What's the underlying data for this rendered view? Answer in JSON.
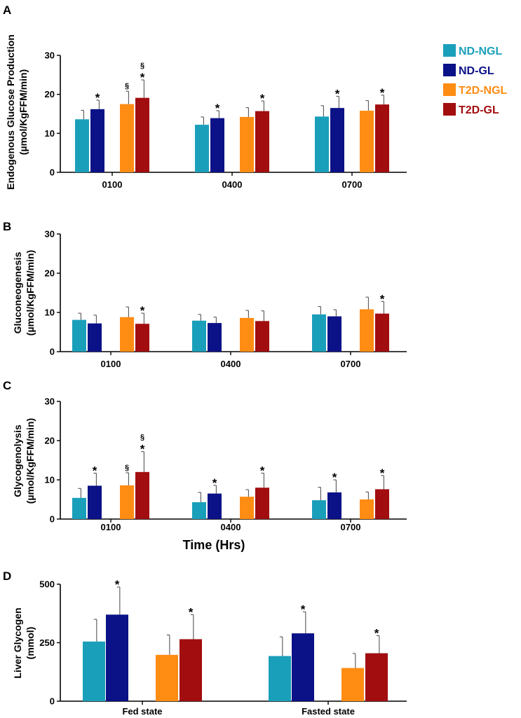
{
  "legend": [
    {
      "label": "ND-NGL",
      "color": "#1a9fba"
    },
    {
      "label": "ND-GL",
      "color": "#0b1186"
    },
    {
      "label": "T2D-NGL",
      "color": "#ff8c13"
    },
    {
      "label": "T2D-GL",
      "color": "#a20d0f"
    }
  ],
  "shared_xlabel": "Time (Hrs)",
  "chart_data": [
    {
      "panel": "A",
      "type": "bar",
      "ylabel_lines": [
        "Endogenous Glucose Production",
        "(µmol/KgFFM/min)"
      ],
      "ylim": [
        0,
        30
      ],
      "yticks": [
        0,
        10,
        20,
        30
      ],
      "categories": [
        "0100",
        "0400",
        "0700"
      ],
      "series": [
        {
          "name": "ND-NGL",
          "values": [
            13.6,
            12.2,
            14.3
          ],
          "errors": [
            2.3,
            2.0,
            2.8
          ],
          "marks": [
            "",
            "",
            ""
          ]
        },
        {
          "name": "ND-GL",
          "values": [
            16.2,
            13.9,
            16.5
          ],
          "errors": [
            2.3,
            1.9,
            3.0
          ],
          "marks": [
            "*",
            "*",
            "*"
          ]
        },
        {
          "name": "T2D-NGL",
          "values": [
            17.5,
            14.2,
            15.8
          ],
          "errors": [
            3.3,
            2.4,
            2.6
          ],
          "marks": [
            "§",
            "",
            ""
          ]
        },
        {
          "name": "T2D-GL",
          "values": [
            19.1,
            15.7,
            17.4
          ],
          "errors": [
            4.6,
            2.6,
            2.4
          ],
          "marks": [
            "§*",
            "*",
            "*"
          ]
        }
      ]
    },
    {
      "panel": "B",
      "type": "bar",
      "ylabel_lines": [
        "Gluconeogenesis",
        "(µmol/KgFFM/min)"
      ],
      "ylim": [
        0,
        30
      ],
      "yticks": [
        0,
        10,
        20,
        30
      ],
      "categories": [
        "0100",
        "0400",
        "0700"
      ],
      "series": [
        {
          "name": "ND-NGL",
          "values": [
            8.1,
            7.9,
            9.5
          ],
          "errors": [
            1.7,
            1.6,
            2.0
          ],
          "marks": [
            "",
            "",
            ""
          ]
        },
        {
          "name": "ND-GL",
          "values": [
            7.2,
            7.3,
            9.0
          ],
          "errors": [
            2.1,
            1.5,
            1.7
          ],
          "marks": [
            "",
            "",
            ""
          ]
        },
        {
          "name": "T2D-NGL",
          "values": [
            8.8,
            8.6,
            10.8
          ],
          "errors": [
            2.6,
            1.9,
            3.1
          ],
          "marks": [
            "",
            "",
            ""
          ]
        },
        {
          "name": "T2D-GL",
          "values": [
            7.1,
            7.8,
            9.7
          ],
          "errors": [
            2.7,
            2.6,
            3.1
          ],
          "marks": [
            "*",
            "",
            "*"
          ]
        }
      ]
    },
    {
      "panel": "C",
      "type": "bar",
      "ylabel_lines": [
        "Glycogenolysis",
        "(µmol/KgFFM/min)"
      ],
      "ylim": [
        0,
        30
      ],
      "yticks": [
        0,
        10,
        20,
        30
      ],
      "categories": [
        "0100",
        "0400",
        "0700"
      ],
      "series": [
        {
          "name": "ND-NGL",
          "values": [
            5.4,
            4.3,
            4.8
          ],
          "errors": [
            2.4,
            2.5,
            3.3
          ],
          "marks": [
            "",
            "",
            ""
          ]
        },
        {
          "name": "ND-GL",
          "values": [
            8.5,
            6.5,
            6.8
          ],
          "errors": [
            3.2,
            2.1,
            3.2
          ],
          "marks": [
            "*",
            "*",
            "*"
          ]
        },
        {
          "name": "T2D-NGL",
          "values": [
            8.6,
            5.7,
            5.0
          ],
          "errors": [
            3.2,
            1.8,
            1.9
          ],
          "marks": [
            "§",
            "",
            ""
          ]
        },
        {
          "name": "T2D-GL",
          "values": [
            12.0,
            8.0,
            7.6
          ],
          "errors": [
            5.2,
            3.7,
            3.5
          ],
          "marks": [
            "§*",
            "*",
            "*"
          ]
        }
      ]
    },
    {
      "panel": "D",
      "type": "bar",
      "ylabel_lines": [
        "Liver Glycogen",
        "(mmol)"
      ],
      "ylim": [
        0,
        500
      ],
      "yticks": [
        0,
        250,
        500
      ],
      "categories": [
        "Fed state",
        "Fasted state"
      ],
      "series": [
        {
          "name": "ND-NGL",
          "values": [
            255,
            193
          ],
          "errors": [
            95,
            82
          ],
          "marks": [
            "",
            ""
          ]
        },
        {
          "name": "ND-GL",
          "values": [
            370,
            290
          ],
          "errors": [
            118,
            92
          ],
          "marks": [
            "*",
            "*"
          ]
        },
        {
          "name": "T2D-NGL",
          "values": [
            198,
            142
          ],
          "errors": [
            85,
            62
          ],
          "marks": [
            "",
            ""
          ]
        },
        {
          "name": "T2D-GL",
          "values": [
            265,
            205
          ],
          "errors": [
            105,
            75
          ],
          "marks": [
            "*",
            "*"
          ]
        }
      ]
    }
  ]
}
